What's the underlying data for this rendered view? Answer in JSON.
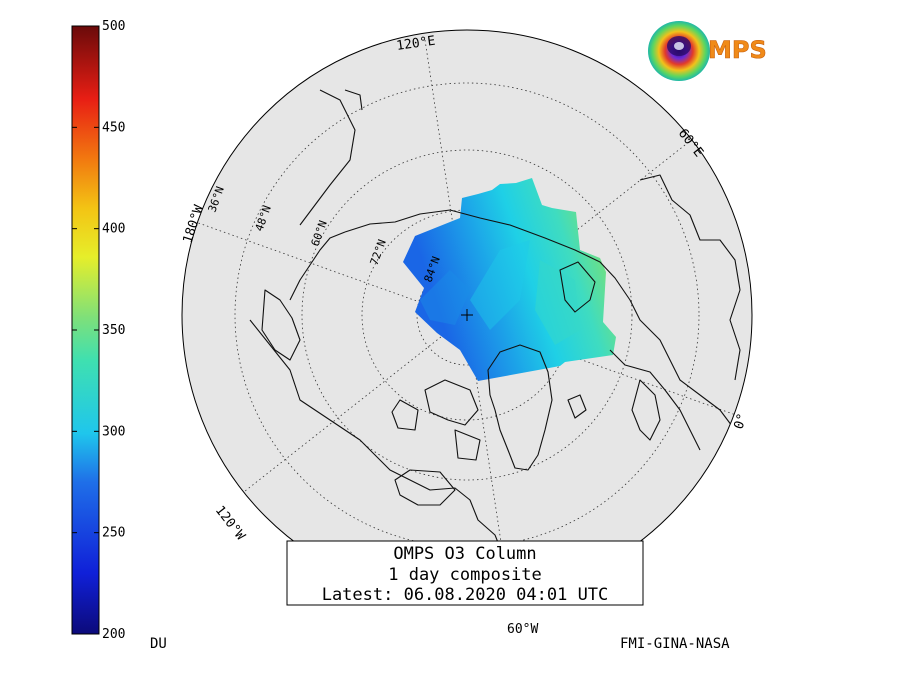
{
  "colorbar": {
    "unit": "DU",
    "ticks": [
      {
        "value": 500,
        "label": "500"
      },
      {
        "value": 450,
        "label": "450"
      },
      {
        "value": 400,
        "label": "400"
      },
      {
        "value": 350,
        "label": "350"
      },
      {
        "value": 300,
        "label": "300"
      },
      {
        "value": 250,
        "label": "250"
      },
      {
        "value": 200,
        "label": "200"
      }
    ],
    "range": [
      200,
      500
    ]
  },
  "title_box": {
    "line1": "OMPS O3 Column",
    "line2": "1 day composite",
    "line3": "Latest: 06.08.2020 04:01 UTC"
  },
  "credit": "FMI-GINA-NASA",
  "logo": {
    "text": "MPS",
    "icon": "ozone-globe-icon"
  },
  "map": {
    "projection": "north-polar stereographic",
    "longitude_labels": {
      "lon_120e": "120°E",
      "lon_60e": "60°E",
      "lon_0": "0°",
      "lon_60w": "60°W",
      "lon_120w": "120°W",
      "lon_180w": "180°W"
    },
    "latitude_labels": {
      "lat_36n": "36°N",
      "lat_48n": "48°N",
      "lat_60n": "60°N",
      "lat_72n": "72°N",
      "lat_84n": "84°N"
    },
    "colors": {
      "background_disc": "#e6e6e6",
      "ozone_low": "#1f6fe8",
      "ozone_mid": "#1fc9e8",
      "ozone_high": "#5fe08a",
      "coastline": "#111111"
    }
  }
}
